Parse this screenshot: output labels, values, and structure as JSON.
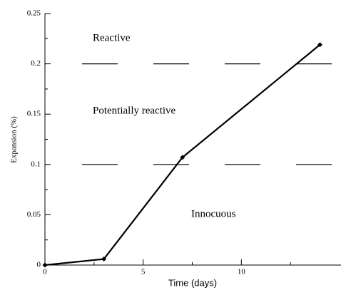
{
  "chart_data": {
    "type": "line",
    "x_label": "Time (days)",
    "y_label": "Expansion (%)",
    "x": [
      0,
      3,
      7,
      14
    ],
    "series": [
      {
        "name": "Expansion",
        "color": "#000000",
        "values": [
          0,
          0.006,
          0.107,
          0.219
        ]
      }
    ],
    "xlim": [
      0,
      15
    ],
    "ylim": [
      0,
      0.25
    ],
    "xticks": [
      0,
      5,
      10
    ],
    "yticks": [
      0,
      0.05,
      0.1,
      0.15,
      0.2,
      0.25
    ],
    "xminorticks": [
      2.5,
      7.5,
      12.5
    ],
    "yminorticks": [
      0.025,
      0.075,
      0.125,
      0.175,
      0.225
    ],
    "hlines": [
      0.1,
      0.2
    ],
    "annotations": [
      "Reactive",
      "Potentially reactive",
      "Innocuous"
    ]
  }
}
